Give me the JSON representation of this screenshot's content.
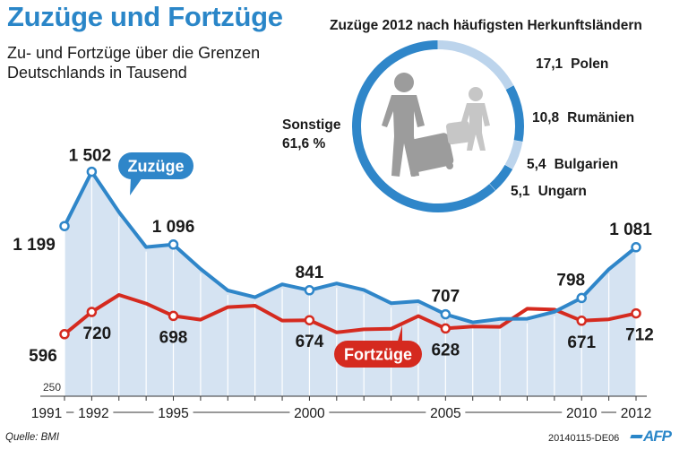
{
  "header": {
    "title": "Zuzüge und Fortzüge",
    "subtitle_line1": "Zu- und Fortzüge über die Grenzen",
    "subtitle_line2": "Deutschlands in Tausend"
  },
  "footer": {
    "source": "Quelle: BMI",
    "code": "20140115-DE06",
    "logo": "AFP"
  },
  "colors": {
    "zuzuege": "#2f86c9",
    "fortzuege": "#d52a1f",
    "area": "#d5e3f2",
    "pie_light": "#bcd4ec"
  },
  "chart_data": [
    {
      "type": "line",
      "x": [
        1991,
        1992,
        1993,
        1994,
        1995,
        1996,
        1997,
        1998,
        1999,
        2000,
        2001,
        2002,
        2003,
        2004,
        2005,
        2006,
        2007,
        2008,
        2009,
        2010,
        2011,
        2012
      ],
      "x_tick_labels": [
        "1991",
        "1992",
        "1995",
        "2000",
        "2005",
        "2010",
        "2012"
      ],
      "x_tick_values": [
        1991,
        1992,
        1995,
        2000,
        2005,
        2010,
        2012
      ],
      "ylim": [
        250,
        1600
      ],
      "y_axis_label": "250",
      "series": [
        {
          "name": "Zuzüge",
          "values": [
            1199,
            1502,
            1277,
            1082,
            1096,
            960,
            840,
            802,
            874,
            841,
            879,
            843,
            769,
            780,
            707,
            662,
            681,
            682,
            721,
            798,
            958,
            1081
          ]
        },
        {
          "name": "Fortzüge",
          "values": [
            596,
            720,
            815,
            767,
            698,
            677,
            747,
            755,
            672,
            674,
            606,
            623,
            626,
            697,
            628,
            639,
            637,
            738,
            733,
            671,
            679,
            712
          ]
        }
      ],
      "labels": {
        "zuzuege": [
          {
            "year": 1991,
            "text": "1 199"
          },
          {
            "year": 1992,
            "text": "1 502"
          },
          {
            "year": 1995,
            "text": "1 096"
          },
          {
            "year": 2000,
            "text": "841"
          },
          {
            "year": 2005,
            "text": "707"
          },
          {
            "year": 2010,
            "text": "798"
          },
          {
            "year": 2012,
            "text": "1 081"
          }
        ],
        "fortzuege": [
          {
            "year": 1991,
            "text": "596"
          },
          {
            "year": 1992,
            "text": "720"
          },
          {
            "year": 1995,
            "text": "698"
          },
          {
            "year": 2000,
            "text": "674"
          },
          {
            "year": 2005,
            "text": "628"
          },
          {
            "year": 2010,
            "text": "671"
          },
          {
            "year": 2012,
            "text": "712"
          }
        ]
      }
    },
    {
      "type": "pie",
      "title": "Zuzüge 2012 nach häufigsten Herkunftsländern",
      "slices": [
        {
          "label": "Polen",
          "value": 17.1,
          "text": "17,1"
        },
        {
          "label": "Rumänien",
          "value": 10.8,
          "text": "10,8"
        },
        {
          "label": "Bulgarien",
          "value": 5.4,
          "text": "5,4"
        },
        {
          "label": "Ungarn",
          "value": 5.1,
          "text": "5,1"
        },
        {
          "label": "Sonstige",
          "value": 61.6,
          "text": "61,6 %"
        }
      ]
    }
  ]
}
